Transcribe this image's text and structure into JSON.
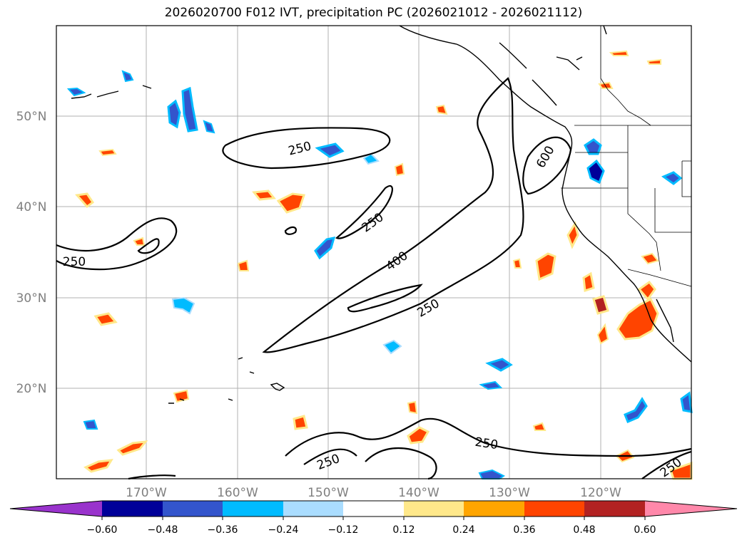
{
  "title": "2026020700 F012 IVT, precipitation PC (2026021012 - 2026021112)",
  "lat_labels": [
    "50°N",
    "40°N",
    "30°N",
    "20°N"
  ],
  "lon_labels": [
    "170°W",
    "160°W",
    "150°W",
    "140°W",
    "130°W",
    "120°W"
  ],
  "ivt_labels": [
    "250",
    "250",
    "250",
    "400",
    "600",
    "250",
    "250",
    "250"
  ],
  "colorbar": {
    "ticks": [
      "−0.60",
      "−0.48",
      "−0.36",
      "−0.24",
      "−0.12",
      "0.12",
      "0.24",
      "0.36",
      "0.48",
      "0.60"
    ],
    "colors": [
      "#9933cc",
      "#000099",
      "#3355cc",
      "#00bbff",
      "#aaddff",
      "#ffffff",
      "#ffe88a",
      "#ffa500",
      "#ff4400",
      "#b22222",
      "#ff88aa"
    ]
  }
}
